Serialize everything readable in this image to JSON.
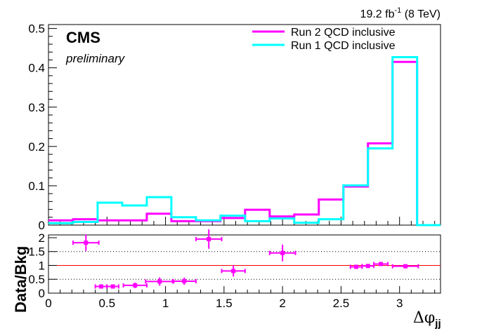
{
  "chart_data": [
    {
      "type": "line",
      "title": "",
      "lumi_label": "19.2 fb",
      "lumi_exponent": "-1",
      "lumi_suffix": " (8 TeV)",
      "cms_label": "CMS",
      "preliminary_label": "preliminary",
      "xlim": [
        0,
        3.35
      ],
      "ylim": [
        0,
        0.51
      ],
      "y_ticks": [
        "0",
        "0.1",
        "0.2",
        "0.3",
        "0.4",
        "0.5"
      ],
      "bin_edges": [
        0,
        0.21,
        0.42,
        0.63,
        0.84,
        1.05,
        1.26,
        1.47,
        1.68,
        1.89,
        2.1,
        2.31,
        2.52,
        2.73,
        2.94,
        3.15,
        3.35
      ],
      "legend_position": "top-right",
      "series": [
        {
          "name": "Run 2 QCD inclusive",
          "color": "#ff00ff",
          "values": [
            0.012,
            0.015,
            0.012,
            0.012,
            0.029,
            0.01,
            0.01,
            0.018,
            0.039,
            0.022,
            0.027,
            0.065,
            0.098,
            0.208,
            0.415,
            0.0
          ]
        },
        {
          "name": "Run 1 QCD inclusive",
          "color": "#00ffff",
          "values": [
            0.005,
            0.008,
            0.057,
            0.05,
            0.071,
            0.02,
            0.012,
            0.024,
            0.01,
            0.017,
            0.006,
            0.015,
            0.101,
            0.195,
            0.427,
            0.0
          ]
        }
      ]
    },
    {
      "type": "scatter",
      "ylabel": "Data/Bkg",
      "xlabel_symbol": "Δφ",
      "xlabel_subscript": "jj",
      "xlim": [
        0,
        3.35
      ],
      "ylim": [
        0,
        2.1
      ],
      "y_ticks": [
        "0",
        "0.5",
        "1",
        "1.5",
        "2"
      ],
      "x_ticks": [
        "0",
        "0.5",
        "1",
        "1.5",
        "2",
        "2.5",
        "3"
      ],
      "reference_line": 1,
      "dotted_lines": [
        0.5,
        1.5
      ],
      "marker_color": "#ff00ff",
      "reference_color": "#ff0000",
      "points": [
        {
          "x": 0.32,
          "xerr": 0.11,
          "y": 1.82,
          "yerr": 0.3
        },
        {
          "x": 0.45,
          "xerr": 0.05,
          "y": 0.24,
          "yerr": 0.05
        },
        {
          "x": 0.55,
          "xerr": 0.05,
          "y": 0.24,
          "yerr": 0.05
        },
        {
          "x": 0.74,
          "xerr": 0.1,
          "y": 0.28,
          "yerr": 0.1
        },
        {
          "x": 0.95,
          "xerr": 0.12,
          "y": 0.42,
          "yerr": 0.15
        },
        {
          "x": 1.16,
          "xerr": 0.1,
          "y": 0.43,
          "yerr": 0.13
        },
        {
          "x": 1.37,
          "xerr": 0.11,
          "y": 1.95,
          "yerr": 0.35
        },
        {
          "x": 1.58,
          "xerr": 0.1,
          "y": 0.8,
          "yerr": 0.2
        },
        {
          "x": 2.0,
          "xerr": 0.11,
          "y": 1.45,
          "yerr": 0.3
        },
        {
          "x": 2.63,
          "xerr": 0.05,
          "y": 0.95,
          "yerr": 0.07
        },
        {
          "x": 2.73,
          "xerr": 0.05,
          "y": 0.98,
          "yerr": 0.04
        },
        {
          "x": 2.84,
          "xerr": 0.06,
          "y": 1.05,
          "yerr": 0.05
        },
        {
          "x": 3.05,
          "xerr": 0.11,
          "y": 0.97,
          "yerr": 0.05
        }
      ]
    }
  ]
}
